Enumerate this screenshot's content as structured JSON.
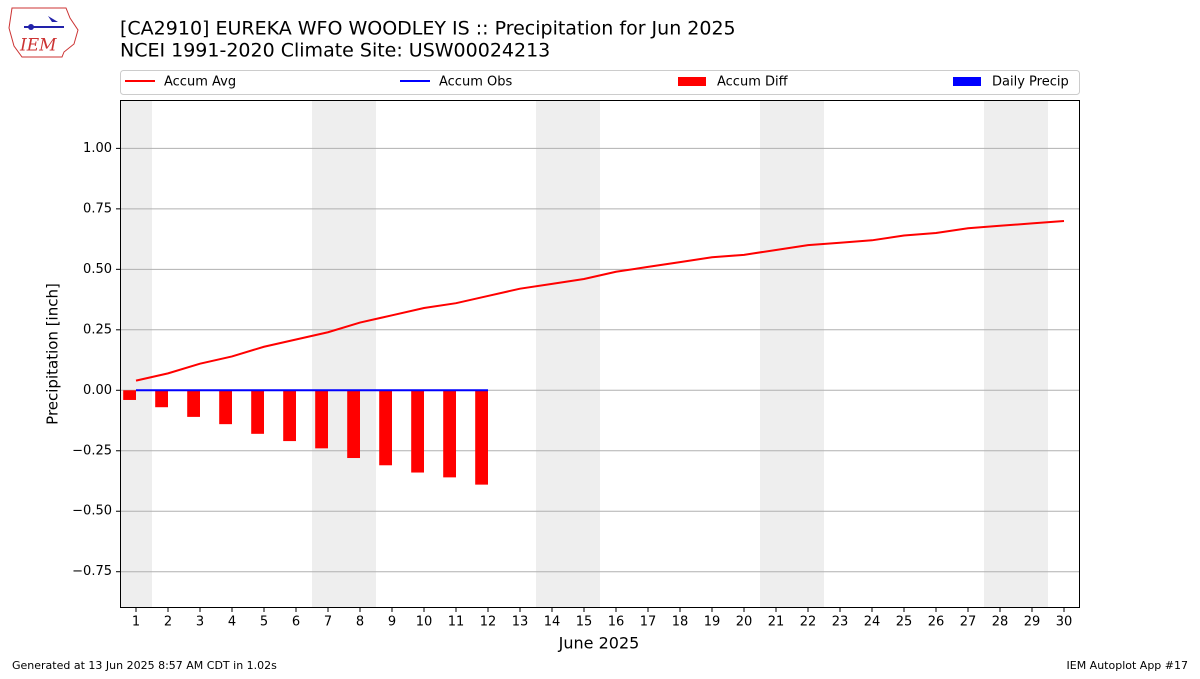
{
  "logo_text": "IEM",
  "footer_left": "Generated at 13 Jun 2025 8:57 AM CDT in 1.02s",
  "footer_right": "IEM Autoplot App #17",
  "chart_data": {
    "type": "bar",
    "title": "[CA2910] EUREKA WFO WOODLEY IS :: Precipitation for Jun 2025",
    "subtitle": "NCEI 1991-2020 Climate Site: USW00024213",
    "x_label": "June 2025",
    "y_label": "Precipitation [inch]",
    "x": [
      1,
      2,
      3,
      4,
      5,
      6,
      7,
      8,
      9,
      10,
      11,
      12,
      13,
      14,
      15,
      16,
      17,
      18,
      19,
      20,
      21,
      22,
      23,
      24,
      25,
      26,
      27,
      28,
      29,
      30
    ],
    "xlim": [
      0.5,
      30.5
    ],
    "xticks": [
      1,
      2,
      3,
      4,
      5,
      6,
      7,
      8,
      9,
      10,
      11,
      12,
      13,
      14,
      15,
      16,
      17,
      18,
      19,
      20,
      21,
      22,
      23,
      24,
      25,
      26,
      27,
      28,
      29,
      30
    ],
    "ylim": [
      -0.9,
      1.2
    ],
    "yticks": [
      {
        "value": -0.75,
        "label": "−0.75"
      },
      {
        "value": -0.5,
        "label": "−0.50"
      },
      {
        "value": -0.25,
        "label": "−0.25"
      },
      {
        "value": 0,
        "label": "0.00"
      },
      {
        "value": 0.25,
        "label": "0.25"
      },
      {
        "value": 0.5,
        "label": "0.50"
      },
      {
        "value": 0.75,
        "label": "0.75"
      },
      {
        "value": 1,
        "label": "1.00"
      }
    ],
    "grid": true,
    "series": [
      {
        "name": "Accum Avg",
        "type": "line",
        "color": "#ff0000",
        "values": [
          0.04,
          0.07,
          0.11,
          0.14,
          0.18,
          0.21,
          0.24,
          0.28,
          0.31,
          0.34,
          0.36,
          0.39,
          0.42,
          0.44,
          0.46,
          0.49,
          0.51,
          0.53,
          0.55,
          0.56,
          0.58,
          0.6,
          0.61,
          0.62,
          0.64,
          0.65,
          0.67,
          0.68,
          0.69,
          0.7
        ]
      },
      {
        "name": "Accum Obs",
        "type": "line",
        "color": "#0000ff",
        "values": [
          0,
          0,
          0,
          0,
          0,
          0,
          0,
          0,
          0,
          0,
          0,
          0,
          null,
          null,
          null,
          null,
          null,
          null,
          null,
          null,
          null,
          null,
          null,
          null,
          null,
          null,
          null,
          null,
          null,
          null
        ]
      },
      {
        "name": "Accum Diff",
        "type": "bar",
        "color": "#ff0000",
        "values": [
          -0.04,
          -0.07,
          -0.11,
          -0.14,
          -0.18,
          -0.21,
          -0.24,
          -0.28,
          -0.31,
          -0.34,
          -0.36,
          -0.39,
          null,
          null,
          null,
          null,
          null,
          null,
          null,
          null,
          null,
          null,
          null,
          null,
          null,
          null,
          null,
          null,
          null,
          null
        ]
      },
      {
        "name": "Daily Precip",
        "type": "bar",
        "color": "#0000ff",
        "values": [
          0,
          0,
          0,
          0,
          0,
          0,
          0,
          0,
          0,
          0,
          0,
          0,
          null,
          null,
          null,
          null,
          null,
          null,
          null,
          null,
          null,
          null,
          null,
          null,
          null,
          null,
          null,
          null,
          null,
          null
        ]
      }
    ]
  }
}
